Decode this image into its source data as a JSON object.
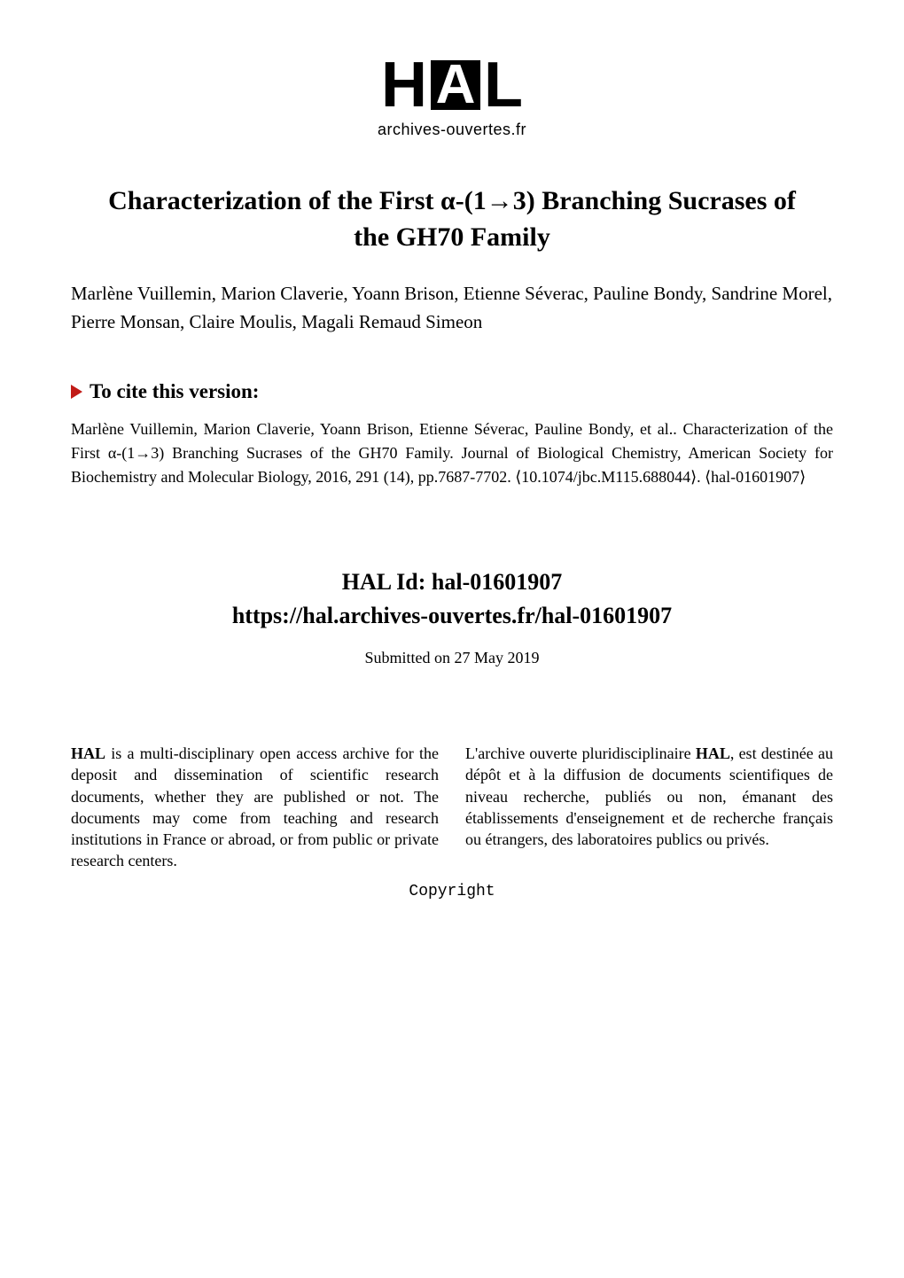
{
  "logo": {
    "H": "H",
    "A": "A",
    "L": "L",
    "subtitle": "archives-ouvertes.fr"
  },
  "title": "Characterization of the First α-(1→3) Branching Sucrases of the GH70 Family",
  "authors": "Marlène Vuillemin, Marion Claverie, Yoann Brison, Etienne Séverac, Pauline Bondy, Sandrine Morel, Pierre Monsan, Claire Moulis, Magali Remaud Simeon",
  "cite": {
    "heading": "To cite this version:",
    "text": "Marlène Vuillemin, Marion Claverie, Yoann Brison, Etienne Séverac, Pauline Bondy, et al.. Characterization of the First α-(1→3) Branching Sucrases of the GH70 Family. Journal of Biological Chemistry, American Society for Biochemistry and Molecular Biology, 2016, 291 (14), pp.7687-7702. ⟨10.1074/jbc.M115.688044⟩. ⟨hal-01601907⟩"
  },
  "hal": {
    "id": "HAL Id: hal-01601907",
    "url": "https://hal.archives-ouvertes.fr/hal-01601907",
    "submitted": "Submitted on 27 May 2019"
  },
  "columns": {
    "left_lead": "HAL",
    "left_rest": " is a multi-disciplinary open access archive for the deposit and dissemination of scientific research documents, whether they are published or not. The documents may come from teaching and research institutions in France or abroad, or from public or private research centers.",
    "right_pre": "L'archive ouverte pluridisciplinaire ",
    "right_lead": "HAL",
    "right_rest": ", est destinée au dépôt et à la diffusion de documents scientifiques de niveau recherche, publiés ou non, émanant des établissements d'enseignement et de recherche français ou étrangers, des laboratoires publics ou privés."
  },
  "copyright": "Copyright",
  "colors": {
    "accent_red": "#c11b17",
    "black": "#000000",
    "white": "#ffffff"
  },
  "fonts": {
    "body": "Times New Roman",
    "logo": "Arial",
    "mono": "Courier New",
    "title_size_pt": 30,
    "author_size_pt": 21,
    "cite_size_pt": 18,
    "halid_size_pt": 26,
    "col_size_pt": 18
  }
}
